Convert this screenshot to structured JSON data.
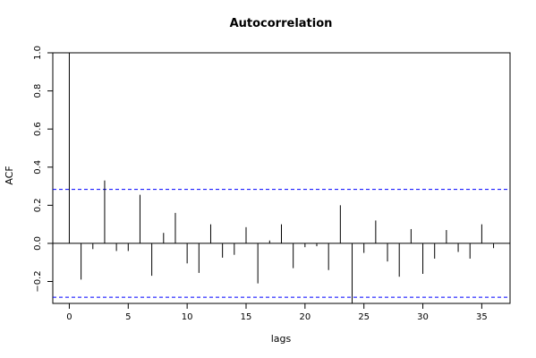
{
  "chart_data": {
    "type": "bar",
    "title": "Autocorrelation",
    "xlabel": "lags",
    "ylabel": "ACF",
    "xlim": [
      -1.4,
      37.4
    ],
    "ylim": [
      -0.315,
      1.0
    ],
    "x_ticks": [
      0,
      5,
      10,
      15,
      20,
      25,
      30,
      35
    ],
    "y_ticks": [
      -0.2,
      0.0,
      0.2,
      0.4,
      0.6,
      0.8,
      1.0
    ],
    "y_tick_labels": [
      "−0.2",
      "0.0",
      "0.2",
      "0.4",
      "0.6",
      "0.8",
      "1.0"
    ],
    "confidence_bounds": [
      0.283,
      -0.283
    ],
    "confidence_color": "#0000ff",
    "lags": [
      0,
      1,
      2,
      3,
      4,
      5,
      6,
      7,
      8,
      9,
      10,
      11,
      12,
      13,
      14,
      15,
      16,
      17,
      18,
      19,
      20,
      21,
      22,
      23,
      24,
      25,
      26,
      27,
      28,
      29,
      30,
      31,
      32,
      33,
      34,
      35,
      36
    ],
    "acf": [
      1.0,
      -0.19,
      -0.03,
      0.33,
      -0.04,
      -0.04,
      0.255,
      -0.17,
      0.055,
      0.16,
      -0.105,
      -0.155,
      0.1,
      -0.075,
      -0.06,
      0.085,
      -0.21,
      0.015,
      0.1,
      -0.13,
      -0.02,
      -0.015,
      -0.14,
      0.2,
      -0.315,
      -0.05,
      0.12,
      -0.095,
      -0.175,
      0.075,
      -0.16,
      -0.08,
      0.07,
      -0.045,
      -0.08,
      0.1,
      -0.025
    ],
    "grid": false,
    "legend": "none"
  }
}
